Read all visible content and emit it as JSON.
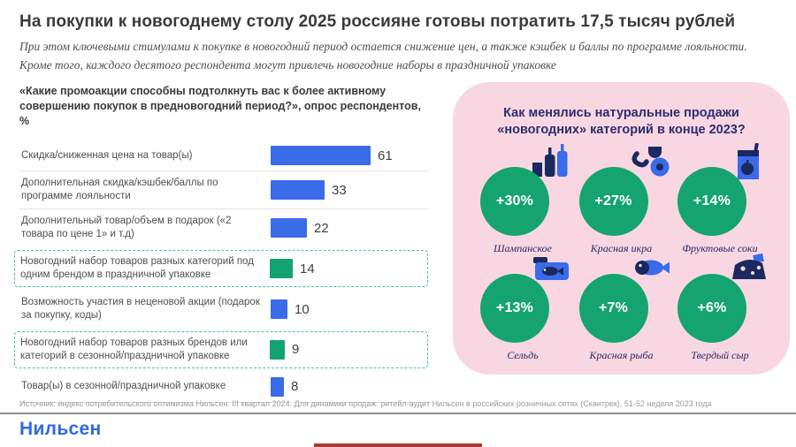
{
  "header": {
    "title": "На покупки к новогоднему столу 2025 россияне готовы потратить 17,5 тысяч рублей",
    "subtitle": "При этом ключевыми стимулами к покупке в новогодний период остается снижение цен, а также кэшбек и баллы по программе лояльности. Кроме того, каждого десятого респондента могут привлечь новогодние наборы в праздничной упаковке"
  },
  "chart_data": [
    {
      "type": "bar",
      "orientation": "horizontal",
      "title": "«Какие промоакции способны подтолкнуть вас к более активному совершению покупок в предновогодний период?», опрос респондентов, %",
      "categories": [
        "Скидка/сниженная цена на товар(ы)",
        "Дополнительная скидка/кэшбек/баллы по программе лояльности",
        "Дополнительный товар/объем в подарок («2 товара по цене 1» и т.д)",
        "Новогодний набор товаров разных категорий под одним брендом в праздничной упаковке",
        "Возможность участия в неценовой акции (подарок за покупку, коды)",
        "Новогодний набор товаров разных брендов или категорий в сезонной/праздничной упаковке",
        "Товар(ы) в сезонной/праздничной упаковке"
      ],
      "values": [
        61,
        33,
        22,
        14,
        10,
        9,
        8
      ],
      "highlighted": [
        false,
        false,
        false,
        true,
        false,
        true,
        false
      ],
      "xlim": [
        0,
        65
      ],
      "unit": "%",
      "colors": {
        "default": "#3a6be8",
        "highlight": "#13a370"
      }
    },
    {
      "type": "bar",
      "layout": "kpi-circles",
      "title": "Как менялись натуральные продажи «новогодних» категорий в конце 2023?",
      "categories": [
        "Шампанское",
        "Красная икра",
        "Фруктовые соки",
        "Сельдь",
        "Красная рыба",
        "Твердый сыр"
      ],
      "values": [
        30,
        27,
        14,
        13,
        7,
        6
      ],
      "value_labels": [
        "+30%",
        "+27%",
        "+14%",
        "+13%",
        "+7%",
        "+6%"
      ],
      "unit": "%"
    }
  ],
  "panel": {
    "circle_color": "#15a46f",
    "background": "#f8d7e3",
    "icons": [
      "champagne-bottles-icon",
      "caviar-icon",
      "juice-icon",
      "canned-herring-icon",
      "fish-icon",
      "cheese-icon"
    ]
  },
  "colors": {
    "bar_blue": "#3a6be8",
    "bar_green": "#13a370",
    "dashed_box": "#3ec3a6",
    "panel_pink": "#f8d7e3",
    "navy_text": "#2d2d6e",
    "logo_blue": "#2d68e8",
    "accent_red": "#a93a34"
  },
  "footer": {
    "source": "Источник: индекс потребительского оптимизма Нильсен. III квартал 2024. Для динамики продаж: ритейл-аудит Нильсен в российских розничных сетях (Скантрек), 51-52 неделя 2023 года",
    "logo": "Нильсен"
  }
}
